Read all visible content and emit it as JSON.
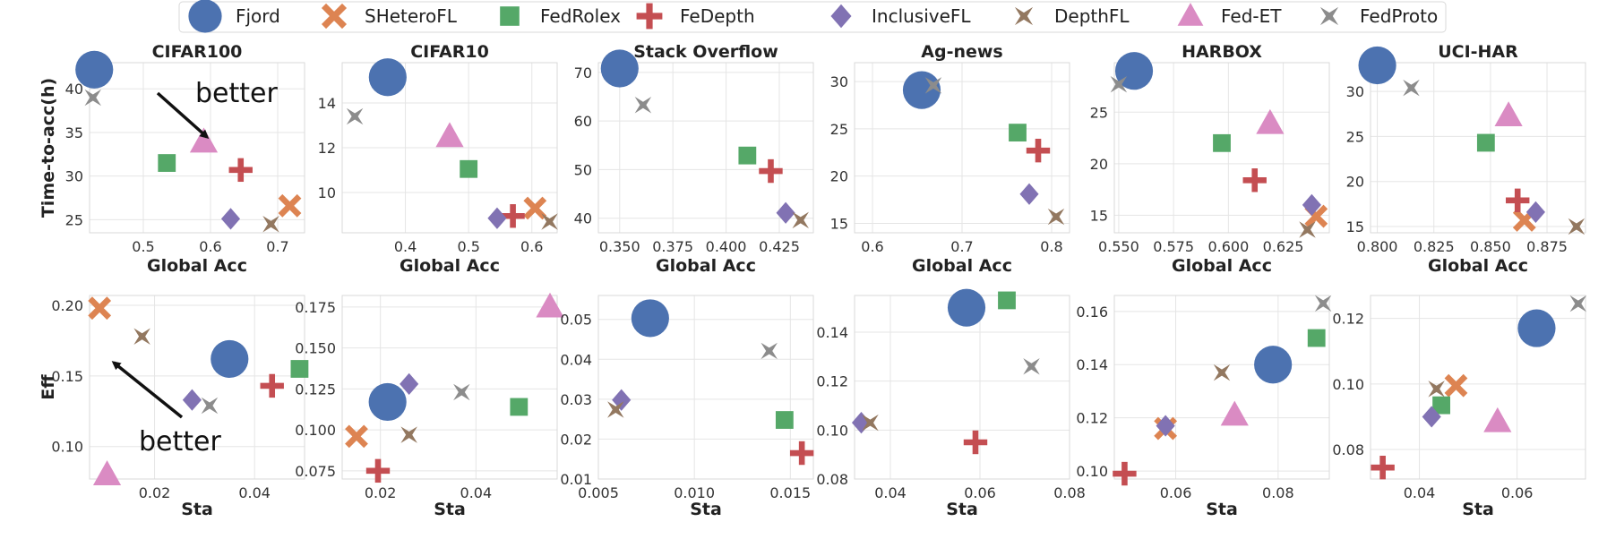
{
  "chart_data": {
    "type": "scatter",
    "legend": {
      "position": "top-center",
      "entries": [
        {
          "name": "Fjord",
          "color": "#4c72b0",
          "marker": "circle"
        },
        {
          "name": "SHeteroFL",
          "color": "#dd8452",
          "marker": "x"
        },
        {
          "name": "FedRolex",
          "color": "#55a868",
          "marker": "square"
        },
        {
          "name": "FeDepth",
          "color": "#c44e52",
          "marker": "plus"
        },
        {
          "name": "InclusiveFL",
          "color": "#8172b3",
          "marker": "diamond"
        },
        {
          "name": "DepthFL",
          "color": "#937860",
          "marker": "star4"
        },
        {
          "name": "Fed-ET",
          "color": "#da8bc3",
          "marker": "triangle"
        },
        {
          "name": "FedProto",
          "color": "#8c8c8c",
          "marker": "star4"
        }
      ]
    },
    "panels": [
      {
        "title": "CIFAR100",
        "xlabel": "Global Acc",
        "ylabel": "Time-to-acc(h)",
        "xlim": [
          0.42,
          0.74
        ],
        "ylim": [
          23.5,
          43
        ],
        "xticks": [
          0.5,
          0.6,
          0.7
        ],
        "yticks": [
          25,
          30,
          35,
          40
        ],
        "xtick_labels": [
          "0.5",
          "0.6",
          "0.7"
        ],
        "ytick_labels": [
          "25",
          "30",
          "35",
          "40"
        ],
        "points": [
          {
            "series": "Fjord",
            "x": 0.427,
            "y": 42.2
          },
          {
            "series": "SHeteroFL",
            "x": 0.718,
            "y": 26.6
          },
          {
            "series": "FedRolex",
            "x": 0.535,
            "y": 31.5
          },
          {
            "series": "FeDepth",
            "x": 0.645,
            "y": 30.7
          },
          {
            "series": "InclusiveFL",
            "x": 0.63,
            "y": 25.1
          },
          {
            "series": "DepthFL",
            "x": 0.69,
            "y": 24.5
          },
          {
            "series": "Fed-ET",
            "x": 0.59,
            "y": 33.9
          },
          {
            "series": "FedProto",
            "x": 0.425,
            "y": 39.0
          }
        ]
      },
      {
        "title": "CIFAR10",
        "xlabel": "Global Acc",
        "ylabel": "",
        "xlim": [
          0.3,
          0.64
        ],
        "ylim": [
          8.2,
          15.8
        ],
        "xticks": [
          0.4,
          0.5,
          0.6
        ],
        "yticks": [
          10,
          12,
          14
        ],
        "xtick_labels": [
          "0.4",
          "0.5",
          "0.6"
        ],
        "ytick_labels": [
          "10",
          "12",
          "14"
        ],
        "points": [
          {
            "series": "Fjord",
            "x": 0.372,
            "y": 15.15
          },
          {
            "series": "SHeteroFL",
            "x": 0.605,
            "y": 9.3
          },
          {
            "series": "FedRolex",
            "x": 0.5,
            "y": 11.05
          },
          {
            "series": "FeDepth",
            "x": 0.57,
            "y": 8.95
          },
          {
            "series": "InclusiveFL",
            "x": 0.545,
            "y": 8.85
          },
          {
            "series": "DepthFL",
            "x": 0.628,
            "y": 8.7
          },
          {
            "series": "Fed-ET",
            "x": 0.47,
            "y": 12.5
          },
          {
            "series": "FedProto",
            "x": 0.32,
            "y": 13.4
          }
        ]
      },
      {
        "title": "Stack Overflow",
        "xlabel": "Global Acc",
        "ylabel": "",
        "xlim": [
          0.34,
          0.441
        ],
        "ylim": [
          37,
          72
        ],
        "xticks": [
          0.35,
          0.375,
          0.4,
          0.425
        ],
        "yticks": [
          40,
          50,
          60,
          70
        ],
        "xtick_labels": [
          "0.350",
          "0.375",
          "0.400",
          "0.425"
        ],
        "ytick_labels": [
          "40",
          "50",
          "60",
          "70"
        ],
        "points": [
          {
            "series": "Fjord",
            "x": 0.35,
            "y": 70.8
          },
          {
            "series": "FedRolex",
            "x": 0.41,
            "y": 52.9
          },
          {
            "series": "FeDepth",
            "x": 0.421,
            "y": 49.7
          },
          {
            "series": "InclusiveFL",
            "x": 0.428,
            "y": 41.1
          },
          {
            "series": "DepthFL",
            "x": 0.435,
            "y": 39.6
          },
          {
            "series": "FedProto",
            "x": 0.361,
            "y": 63.3
          }
        ]
      },
      {
        "title": "Ag-news",
        "xlabel": "Global Acc",
        "ylabel": "",
        "xlim": [
          0.58,
          0.82
        ],
        "ylim": [
          14,
          32
        ],
        "xticks": [
          0.6,
          0.7,
          0.8
        ],
        "yticks": [
          15,
          20,
          25,
          30
        ],
        "xtick_labels": [
          "0.6",
          "0.7",
          "0.8"
        ],
        "ytick_labels": [
          "15",
          "20",
          "25",
          "30"
        ],
        "points": [
          {
            "series": "Fjord",
            "x": 0.655,
            "y": 29.1
          },
          {
            "series": "FedRolex",
            "x": 0.762,
            "y": 24.6
          },
          {
            "series": "FeDepth",
            "x": 0.785,
            "y": 22.7
          },
          {
            "series": "InclusiveFL",
            "x": 0.775,
            "y": 18.1
          },
          {
            "series": "DepthFL",
            "x": 0.805,
            "y": 15.7
          },
          {
            "series": "FedProto",
            "x": 0.668,
            "y": 29.6
          }
        ]
      },
      {
        "title": "HARBOX",
        "xlabel": "Global Acc",
        "ylabel": "",
        "xlim": [
          0.548,
          0.646
        ],
        "ylim": [
          13.3,
          29.8
        ],
        "xticks": [
          0.55,
          0.575,
          0.6,
          0.625
        ],
        "yticks": [
          15,
          20,
          25
        ],
        "xtick_labels": [
          "0.550",
          "0.575",
          "0.600",
          "0.625"
        ],
        "ytick_labels": [
          "15",
          "20",
          "25"
        ],
        "points": [
          {
            "series": "Fjord",
            "x": 0.557,
            "y": 29.0
          },
          {
            "series": "SHeteroFL",
            "x": 0.64,
            "y": 14.9
          },
          {
            "series": "FedRolex",
            "x": 0.597,
            "y": 22.0
          },
          {
            "series": "FeDepth",
            "x": 0.612,
            "y": 18.4
          },
          {
            "series": "InclusiveFL",
            "x": 0.638,
            "y": 16.0
          },
          {
            "series": "DepthFL",
            "x": 0.636,
            "y": 13.6
          },
          {
            "series": "Fed-ET",
            "x": 0.619,
            "y": 23.9
          },
          {
            "series": "FedProto",
            "x": 0.55,
            "y": 27.7
          }
        ]
      },
      {
        "title": "UCI-HAR",
        "xlabel": "Global Acc",
        "ylabel": "",
        "xlim": [
          0.797,
          0.892
        ],
        "ylim": [
          14.3,
          33.2
        ],
        "xticks": [
          0.8,
          0.825,
          0.85,
          0.875
        ],
        "yticks": [
          15,
          20,
          25,
          30
        ],
        "xtick_labels": [
          "0.800",
          "0.825",
          "0.850",
          "0.875"
        ],
        "ytick_labels": [
          "15",
          "20",
          "25",
          "30"
        ],
        "points": [
          {
            "series": "Fjord",
            "x": 0.8,
            "y": 32.9
          },
          {
            "series": "SHeteroFL",
            "x": 0.865,
            "y": 15.7
          },
          {
            "series": "FedRolex",
            "x": 0.848,
            "y": 24.3
          },
          {
            "series": "FeDepth",
            "x": 0.862,
            "y": 17.9
          },
          {
            "series": "InclusiveFL",
            "x": 0.87,
            "y": 16.6
          },
          {
            "series": "DepthFL",
            "x": 0.888,
            "y": 15.0
          },
          {
            "series": "Fed-ET",
            "x": 0.858,
            "y": 27.3
          },
          {
            "series": "FedProto",
            "x": 0.815,
            "y": 30.4
          }
        ]
      },
      {
        "title": "",
        "xlabel": "Sta",
        "ylabel": "Eff",
        "xlim": [
          0.007,
          0.05
        ],
        "ylim": [
          0.077,
          0.207
        ],
        "xticks": [
          0.02,
          0.04
        ],
        "yticks": [
          0.1,
          0.15,
          0.2
        ],
        "xtick_labels": [
          "0.02",
          "0.04"
        ],
        "ytick_labels": [
          "0.10",
          "0.15",
          "0.20"
        ],
        "points": [
          {
            "series": "Fjord",
            "x": 0.035,
            "y": 0.162
          },
          {
            "series": "SHeteroFL",
            "x": 0.009,
            "y": 0.198
          },
          {
            "series": "FedRolex",
            "x": 0.049,
            "y": 0.155
          },
          {
            "series": "FeDepth",
            "x": 0.0435,
            "y": 0.143
          },
          {
            "series": "InclusiveFL",
            "x": 0.0275,
            "y": 0.133
          },
          {
            "series": "DepthFL",
            "x": 0.0175,
            "y": 0.178
          },
          {
            "series": "Fed-ET",
            "x": 0.0105,
            "y": 0.08
          },
          {
            "series": "FedProto",
            "x": 0.031,
            "y": 0.129
          }
        ]
      },
      {
        "title": "",
        "xlabel": "Sta",
        "ylabel": "",
        "xlim": [
          0.012,
          0.057
        ],
        "ylim": [
          0.07,
          0.182
        ],
        "xticks": [
          0.02,
          0.04
        ],
        "yticks": [
          0.075,
          0.1,
          0.125,
          0.15,
          0.175
        ],
        "xtick_labels": [
          "0.02",
          "0.04"
        ],
        "ytick_labels": [
          "0.075",
          "0.100",
          "0.125",
          "0.150",
          "0.175"
        ],
        "points": [
          {
            "series": "Fjord",
            "x": 0.0215,
            "y": 0.117
          },
          {
            "series": "SHeteroFL",
            "x": 0.015,
            "y": 0.096
          },
          {
            "series": "FedRolex",
            "x": 0.049,
            "y": 0.114
          },
          {
            "series": "FeDepth",
            "x": 0.0195,
            "y": 0.075
          },
          {
            "series": "InclusiveFL",
            "x": 0.026,
            "y": 0.128
          },
          {
            "series": "DepthFL",
            "x": 0.026,
            "y": 0.097
          },
          {
            "series": "Fed-ET",
            "x": 0.0555,
            "y": 0.175
          },
          {
            "series": "FedProto",
            "x": 0.037,
            "y": 0.123
          }
        ]
      },
      {
        "title": "",
        "xlabel": "Sta",
        "ylabel": "",
        "xlim": [
          0.005,
          0.0162
        ],
        "ylim": [
          0.01,
          0.056
        ],
        "xticks": [
          0.005,
          0.01,
          0.015
        ],
        "yticks": [
          0.01,
          0.02,
          0.03,
          0.04,
          0.05
        ],
        "xtick_labels": [
          "0.005",
          "0.010",
          "0.015"
        ],
        "ytick_labels": [
          "0.01",
          "0.02",
          "0.03",
          "0.04",
          "0.05"
        ],
        "points": [
          {
            "series": "Fjord",
            "x": 0.0077,
            "y": 0.0503
          },
          {
            "series": "FedRolex",
            "x": 0.0147,
            "y": 0.0248
          },
          {
            "series": "FeDepth",
            "x": 0.0156,
            "y": 0.0165
          },
          {
            "series": "InclusiveFL",
            "x": 0.0062,
            "y": 0.0298
          },
          {
            "series": "DepthFL",
            "x": 0.0059,
            "y": 0.0274
          },
          {
            "series": "FedProto",
            "x": 0.0139,
            "y": 0.0421
          }
        ]
      },
      {
        "title": "",
        "xlabel": "Sta",
        "ylabel": "",
        "xlim": [
          0.032,
          0.08
        ],
        "ylim": [
          0.08,
          0.155
        ],
        "xticks": [
          0.04,
          0.06,
          0.08
        ],
        "yticks": [
          0.08,
          0.1,
          0.12,
          0.14
        ],
        "xtick_labels": [
          "0.04",
          "0.06",
          "0.08"
        ],
        "ytick_labels": [
          "0.08",
          "0.10",
          "0.12",
          "0.14"
        ],
        "points": [
          {
            "series": "Fjord",
            "x": 0.057,
            "y": 0.15
          },
          {
            "series": "FedRolex",
            "x": 0.066,
            "y": 0.153
          },
          {
            "series": "FeDepth",
            "x": 0.059,
            "y": 0.095
          },
          {
            "series": "InclusiveFL",
            "x": 0.0335,
            "y": 0.103
          },
          {
            "series": "DepthFL",
            "x": 0.0355,
            "y": 0.103
          },
          {
            "series": "FedProto",
            "x": 0.0715,
            "y": 0.126
          }
        ]
      },
      {
        "title": "",
        "xlabel": "Sta",
        "ylabel": "",
        "xlim": [
          0.048,
          0.09
        ],
        "ylim": [
          0.097,
          0.166
        ],
        "xticks": [
          0.06,
          0.08
        ],
        "yticks": [
          0.1,
          0.12,
          0.14,
          0.16
        ],
        "xtick_labels": [
          "0.06",
          "0.08"
        ],
        "ytick_labels": [
          "0.10",
          "0.12",
          "0.14",
          "0.16"
        ],
        "points": [
          {
            "series": "Fjord",
            "x": 0.079,
            "y": 0.14
          },
          {
            "series": "SHeteroFL",
            "x": 0.058,
            "y": 0.116
          },
          {
            "series": "FedRolex",
            "x": 0.0875,
            "y": 0.15
          },
          {
            "series": "FeDepth",
            "x": 0.05,
            "y": 0.099
          },
          {
            "series": "InclusiveFL",
            "x": 0.058,
            "y": 0.117
          },
          {
            "series": "DepthFL",
            "x": 0.069,
            "y": 0.137
          },
          {
            "series": "Fed-ET",
            "x": 0.0715,
            "y": 0.121
          },
          {
            "series": "FedProto",
            "x": 0.0888,
            "y": 0.163
          }
        ]
      },
      {
        "title": "",
        "xlabel": "Sta",
        "ylabel": "",
        "xlim": [
          0.03,
          0.074
        ],
        "ylim": [
          0.071,
          0.127
        ],
        "xticks": [
          0.04,
          0.06
        ],
        "yticks": [
          0.08,
          0.1,
          0.12
        ],
        "xtick_labels": [
          "0.04",
          "0.06"
        ],
        "ytick_labels": [
          "0.08",
          "0.10",
          "0.12"
        ],
        "points": [
          {
            "series": "Fjord",
            "x": 0.064,
            "y": 0.117
          },
          {
            "series": "SHeteroFL",
            "x": 0.0475,
            "y": 0.0995
          },
          {
            "series": "FedRolex",
            "x": 0.0445,
            "y": 0.0935
          },
          {
            "series": "FeDepth",
            "x": 0.0325,
            "y": 0.0745
          },
          {
            "series": "InclusiveFL",
            "x": 0.0425,
            "y": 0.09
          },
          {
            "series": "DepthFL",
            "x": 0.0435,
            "y": 0.0985
          },
          {
            "series": "Fed-ET",
            "x": 0.056,
            "y": 0.0885
          },
          {
            "series": "FedProto",
            "x": 0.0725,
            "y": 0.1245
          }
        ]
      }
    ],
    "annotations": [
      {
        "panel": 0,
        "text": "better",
        "direction": "down-right"
      },
      {
        "panel": 6,
        "text": "better",
        "direction": "up-left"
      }
    ]
  }
}
